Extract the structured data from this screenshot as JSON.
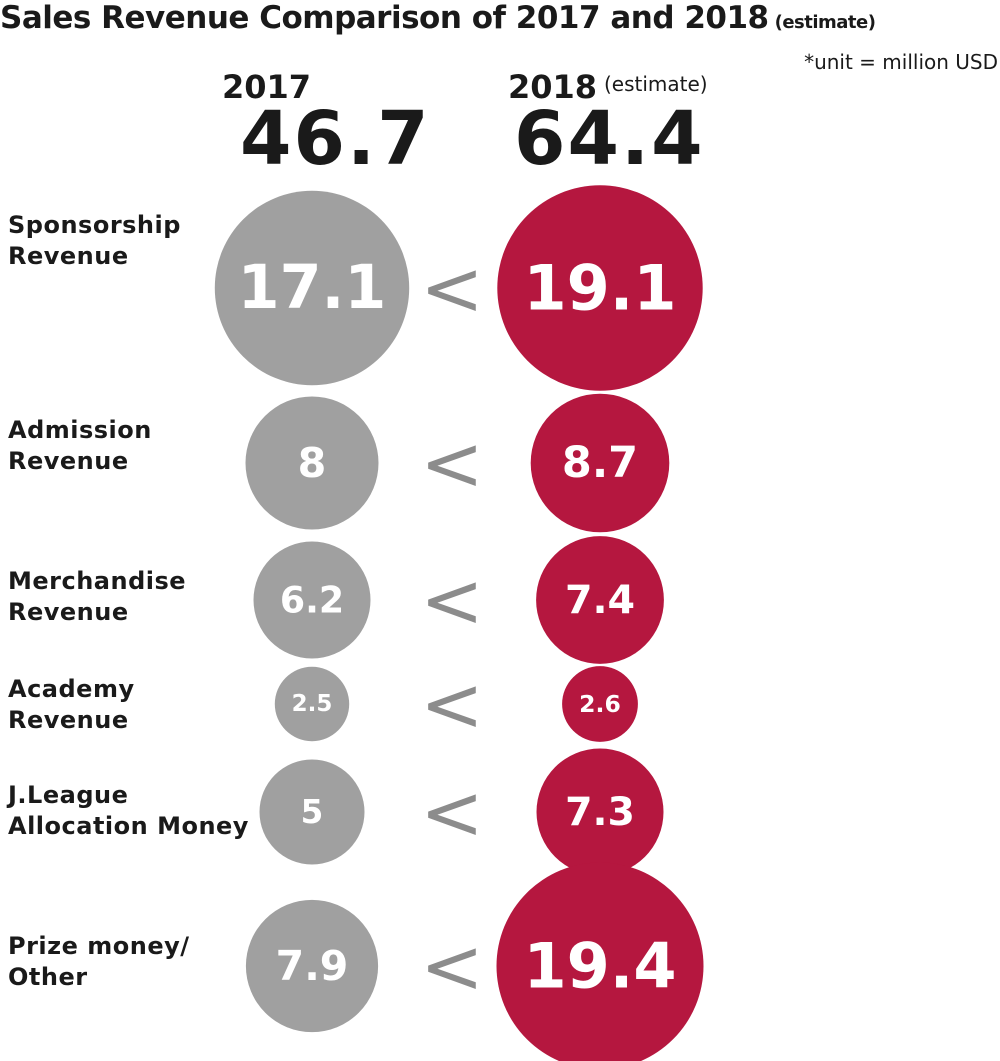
{
  "title": "Sales Revenue Comparison of 2017 and 2018",
  "title_suffix": "(estimate)",
  "unit_note": "*unit = million USD",
  "colors": {
    "y2017": "#a0a0a0",
    "y2018": "#b5173f",
    "comparator": "#8c8c8c"
  },
  "chart_data": {
    "type": "bubble-comparison",
    "title": "Sales Revenue Comparison of 2017 and 2018",
    "unit": "*unit = million USD",
    "years": [
      {
        "label": "2017",
        "note": "",
        "total": "46.7"
      },
      {
        "label": "2018",
        "note": "(estimate)",
        "total": "64.4"
      }
    ],
    "categories": [
      {
        "line1": "Sponsorship",
        "line2": "Revenue"
      },
      {
        "line1": "Admission",
        "line2": "Revenue"
      },
      {
        "line1": "Merchandise",
        "line2": "Revenue"
      },
      {
        "line1": "Academy",
        "line2": "Revenue"
      },
      {
        "line1": "J.League",
        "line2": "Allocation Money"
      },
      {
        "line1": "Prize money/",
        "line2": "Other"
      }
    ],
    "series": [
      {
        "name": "2017",
        "values": [
          17.1,
          8,
          6.2,
          2.5,
          5,
          7.9
        ],
        "labels": [
          "17.1",
          "8",
          "6.2",
          "2.5",
          "5",
          "7.9"
        ]
      },
      {
        "name": "2018",
        "values": [
          19.1,
          8.7,
          7.4,
          2.6,
          7.3,
          19.4
        ],
        "labels": [
          "19.1",
          "8.7",
          "7.4",
          "2.6",
          "7.3",
          "19.4"
        ]
      }
    ],
    "comparator": "<"
  }
}
